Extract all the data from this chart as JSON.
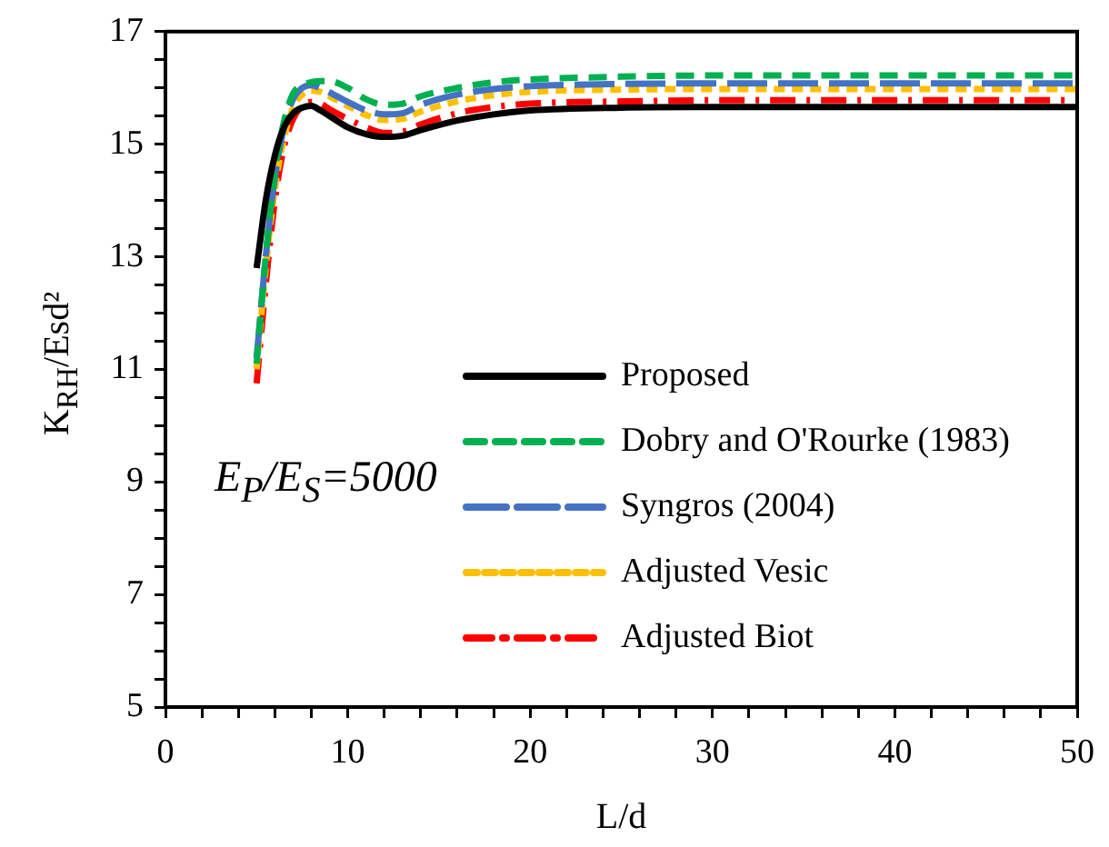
{
  "chart_data": {
    "type": "line",
    "xlabel": "L/d",
    "ylabel": "K$_{RH}$/Esd²",
    "x": [
      5,
      5.5,
      6,
      6.5,
      7,
      7.5,
      8,
      8.5,
      9,
      10,
      11,
      12,
      13,
      14,
      16,
      18,
      20,
      25,
      30,
      40,
      50
    ],
    "series": [
      {
        "name": "Proposed",
        "color": "#000000",
        "line_style": "solid",
        "values": [
          12.8,
          14.0,
          14.8,
          15.3,
          15.55,
          15.65,
          15.68,
          15.6,
          15.5,
          15.3,
          15.18,
          15.13,
          15.15,
          15.25,
          15.42,
          15.53,
          15.6,
          15.65,
          15.66,
          15.66,
          15.66
        ]
      },
      {
        "name": "Dobry and O'Rourke (1983)",
        "color": "#00b050",
        "line_style": "dashed",
        "values": [
          11.1,
          13.0,
          14.5,
          15.4,
          15.9,
          16.05,
          16.1,
          16.12,
          16.12,
          16.0,
          15.8,
          15.7,
          15.72,
          15.85,
          16.0,
          16.1,
          16.15,
          16.2,
          16.22,
          16.22,
          16.22
        ]
      },
      {
        "name": "Syngros (2004)",
        "color": "#4472c4",
        "line_style": "dashed",
        "values": [
          11.2,
          13.0,
          14.4,
          15.3,
          15.8,
          16.0,
          16.05,
          16.0,
          15.92,
          15.75,
          15.6,
          15.53,
          15.55,
          15.7,
          15.88,
          15.98,
          16.03,
          16.07,
          16.08,
          16.08,
          16.08
        ]
      },
      {
        "name": "Adjusted Vesic",
        "color": "#ffc000",
        "line_style": "dashed",
        "values": [
          11.0,
          12.8,
          14.2,
          15.1,
          15.65,
          15.88,
          15.95,
          15.93,
          15.85,
          15.68,
          15.52,
          15.43,
          15.45,
          15.58,
          15.76,
          15.87,
          15.93,
          15.97,
          15.98,
          15.98,
          15.98
        ]
      },
      {
        "name": "Adjusted Biot",
        "color": "#ff0000",
        "line_style": "dashed",
        "values": [
          10.75,
          12.5,
          14.0,
          14.95,
          15.45,
          15.68,
          15.75,
          15.72,
          15.62,
          15.45,
          15.3,
          15.2,
          15.22,
          15.35,
          15.55,
          15.66,
          15.72,
          15.76,
          15.78,
          15.78,
          15.78
        ]
      }
    ],
    "xlim": [
      0,
      50
    ],
    "xticks": [
      0,
      {
        "value": 2,
        "label": null
      },
      {
        "value": 4,
        "label": null
      },
      {
        "value": 6,
        "label": null
      },
      {
        "value": 8,
        "label": null
      },
      10,
      {
        "value": 12,
        "label": null
      },
      {
        "value": 14,
        "label": null
      },
      {
        "value": 16,
        "label": null
      },
      {
        "value": 18,
        "label": null
      },
      20,
      {
        "value": 22,
        "label": null
      },
      {
        "value": 24,
        "label": null
      },
      {
        "value": 26,
        "label": null
      },
      {
        "value": 28,
        "label": null
      },
      30,
      {
        "value": 32,
        "label": null
      },
      {
        "value": 34,
        "label": null
      },
      {
        "value": 36,
        "label": null
      },
      {
        "value": 38,
        "label": null
      },
      40,
      {
        "value": 42,
        "label": null
      },
      {
        "value": 44,
        "label": null
      },
      {
        "value": 46,
        "label": null
      },
      {
        "value": 48,
        "label": null
      },
      50
    ],
    "ylim": [
      5,
      17
    ],
    "yticks": [
      5,
      {
        "value": 5.5,
        "label": null
      },
      {
        "value": 6,
        "label": null
      },
      {
        "value": 6.5,
        "label": null
      },
      7,
      {
        "value": 7.5,
        "label": null
      },
      {
        "value": 8,
        "label": null
      },
      {
        "value": 8.5,
        "label": null
      },
      9,
      {
        "value": 9.5,
        "label": null
      },
      {
        "value": 10,
        "label": null
      },
      {
        "value": 10.5,
        "label": null
      },
      11,
      {
        "value": 11.5,
        "label": null
      },
      {
        "value": 12,
        "label": null
      },
      {
        "value": 12.5,
        "label": null
      },
      13,
      {
        "value": 13.5,
        "label": null
      },
      {
        "value": 14,
        "label": null
      },
      {
        "value": 14.5,
        "label": null
      },
      15,
      {
        "value": 15.5,
        "label": null
      },
      {
        "value": 16,
        "label": null
      },
      {
        "value": 16.5,
        "label": null
      },
      17
    ],
    "grid": false,
    "legend": "bottom right",
    "marker": "none",
    "annotations": [
      "E$_{P}$/E$_{S}$=5000"
    ]
  }
}
